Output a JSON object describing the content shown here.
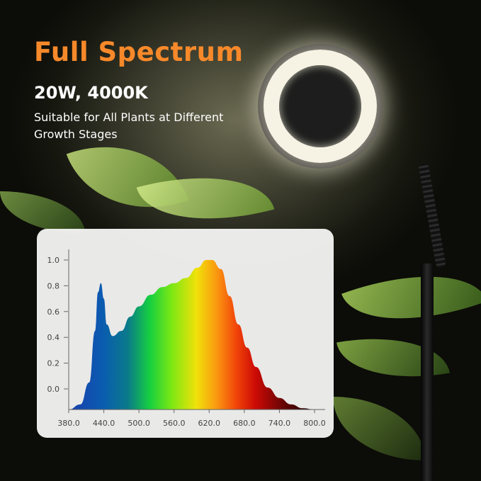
{
  "header": {
    "title": "Full Spectrum",
    "subtitle": "20W, 4000K",
    "description": "Suitable for All Plants at Different Growth Stages"
  },
  "colors": {
    "title": "#f7892a",
    "text": "#ffffff",
    "card": "#f3f3f1"
  },
  "chart_data": {
    "type": "area",
    "title": "",
    "xlabel": "",
    "ylabel": "",
    "xlim": [
      380,
      800
    ],
    "ylim": [
      -0.16,
      1.0
    ],
    "x_ticks": [
      "380.0",
      "440.0",
      "500.0",
      "560.0",
      "620.0",
      "680.0",
      "740.0",
      "800.0"
    ],
    "y_ticks": [
      "0.0",
      "0.2",
      "0.4",
      "0.6",
      "0.8",
      "1.0"
    ],
    "grid": false,
    "fill": "visible spectrum color gradient",
    "x": [
      380,
      400,
      415,
      425,
      430,
      435,
      440,
      445,
      455,
      470,
      485,
      500,
      520,
      540,
      560,
      580,
      600,
      615,
      625,
      640,
      655,
      670,
      685,
      700,
      720,
      740,
      760,
      780,
      800
    ],
    "y": [
      -0.16,
      -0.12,
      0.05,
      0.45,
      0.75,
      0.82,
      0.7,
      0.5,
      0.41,
      0.45,
      0.56,
      0.64,
      0.73,
      0.79,
      0.82,
      0.86,
      0.94,
      1.0,
      1.0,
      0.93,
      0.72,
      0.5,
      0.32,
      0.17,
      0.01,
      -0.07,
      -0.12,
      -0.15,
      -0.16
    ]
  }
}
